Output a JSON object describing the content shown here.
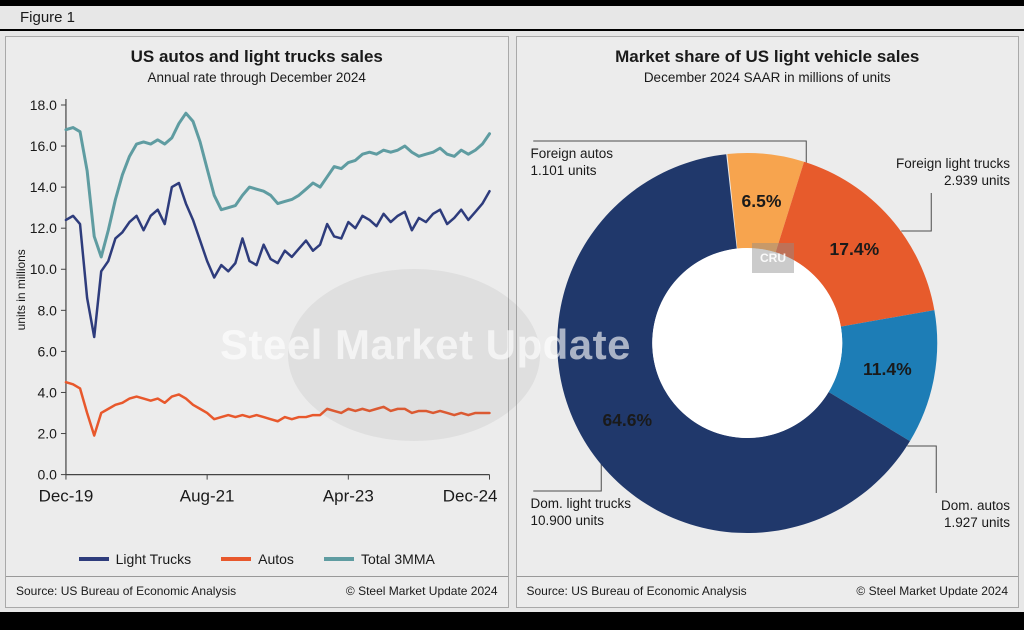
{
  "figure_label": "Figure 1",
  "left_panel": {
    "source": "Source: US Bureau of Economic Analysis",
    "copyright": "© Steel Market Update 2024"
  },
  "right_panel": {
    "source": "Source: US Bureau of Economic Analysis",
    "copyright": "© Steel Market Update 2024"
  },
  "watermark": {
    "smu": "Steel Market Update",
    "cru": "CRU"
  },
  "chart_data": [
    {
      "type": "line",
      "title": "US autos and light trucks sales",
      "subtitle": "Annual rate through December 2024",
      "ylabel": "units in millions",
      "ylim": [
        0,
        18
      ],
      "ytick_step": 2,
      "x_labels": [
        "Dec-19",
        "Aug-21",
        "Apr-23",
        "Dec-24"
      ],
      "x_label_indices": [
        0,
        20,
        40,
        60
      ],
      "x_note": "monthly values Dec-2019 through Dec-2024",
      "series": [
        {
          "name": "Light Trucks",
          "color": "#2e3c7c",
          "width": 2.5,
          "values": [
            12.4,
            12.6,
            12.2,
            8.6,
            6.7,
            9.9,
            10.4,
            11.5,
            11.8,
            12.3,
            12.6,
            11.9,
            12.6,
            12.9,
            12.2,
            14.0,
            14.2,
            13.2,
            12.4,
            11.4,
            10.4,
            9.6,
            10.2,
            9.9,
            10.3,
            11.5,
            10.4,
            10.2,
            11.2,
            10.5,
            10.3,
            10.9,
            10.6,
            11.0,
            11.4,
            10.9,
            11.2,
            12.2,
            11.6,
            11.5,
            12.3,
            12.0,
            12.6,
            12.4,
            12.1,
            12.7,
            12.3,
            12.6,
            12.8,
            11.9,
            12.5,
            12.3,
            12.7,
            12.9,
            12.2,
            12.5,
            12.9,
            12.4,
            12.8,
            13.2,
            13.8
          ]
        },
        {
          "name": "Autos",
          "color": "#e8582c",
          "width": 2.5,
          "values": [
            4.5,
            4.4,
            4.2,
            3.0,
            1.9,
            3.0,
            3.2,
            3.4,
            3.5,
            3.7,
            3.8,
            3.7,
            3.6,
            3.7,
            3.5,
            3.8,
            3.9,
            3.7,
            3.4,
            3.2,
            3.0,
            2.7,
            2.8,
            2.9,
            2.8,
            2.9,
            2.8,
            2.9,
            2.8,
            2.7,
            2.6,
            2.8,
            2.7,
            2.8,
            2.8,
            2.9,
            2.9,
            3.2,
            3.1,
            3.0,
            3.2,
            3.1,
            3.2,
            3.1,
            3.2,
            3.3,
            3.1,
            3.2,
            3.2,
            3.0,
            3.1,
            3.1,
            3.0,
            3.1,
            3.0,
            2.9,
            3.0,
            2.9,
            3.0,
            3.0,
            3.0
          ]
        },
        {
          "name": "Total 3MMA",
          "color": "#5f9ca1",
          "width": 3,
          "values": [
            16.8,
            16.9,
            16.7,
            14.8,
            11.6,
            10.6,
            11.9,
            13.4,
            14.6,
            15.5,
            16.1,
            16.2,
            16.1,
            16.3,
            16.1,
            16.4,
            17.1,
            17.6,
            17.2,
            16.2,
            14.9,
            13.6,
            12.9,
            13.0,
            13.1,
            13.6,
            14.0,
            13.9,
            13.8,
            13.6,
            13.2,
            13.3,
            13.4,
            13.6,
            13.9,
            14.2,
            14.0,
            14.5,
            15.0,
            14.9,
            15.2,
            15.3,
            15.6,
            15.7,
            15.6,
            15.8,
            15.7,
            15.8,
            16.0,
            15.7,
            15.5,
            15.6,
            15.7,
            15.9,
            15.6,
            15.5,
            15.8,
            15.6,
            15.8,
            16.1,
            16.6
          ]
        }
      ]
    },
    {
      "type": "pie",
      "donut": true,
      "title": "Market share of US light vehicle sales",
      "subtitle": "December 2024 SAAR in millions of units",
      "start_angle_deg": -6,
      "slices": [
        {
          "name": "Foreign autos",
          "pct": 6.5,
          "units": "1.101 units",
          "color": "#f7a44e"
        },
        {
          "name": "Foreign light trucks",
          "pct": 17.4,
          "units": "2.939 units",
          "color": "#e75b2c"
        },
        {
          "name": "Dom. autos",
          "pct": 11.4,
          "units": "1.927 units",
          "color": "#1d7db6"
        },
        {
          "name": "Dom. light trucks",
          "pct": 64.6,
          "units": "10.900 units",
          "color": "#20386b"
        }
      ]
    }
  ]
}
